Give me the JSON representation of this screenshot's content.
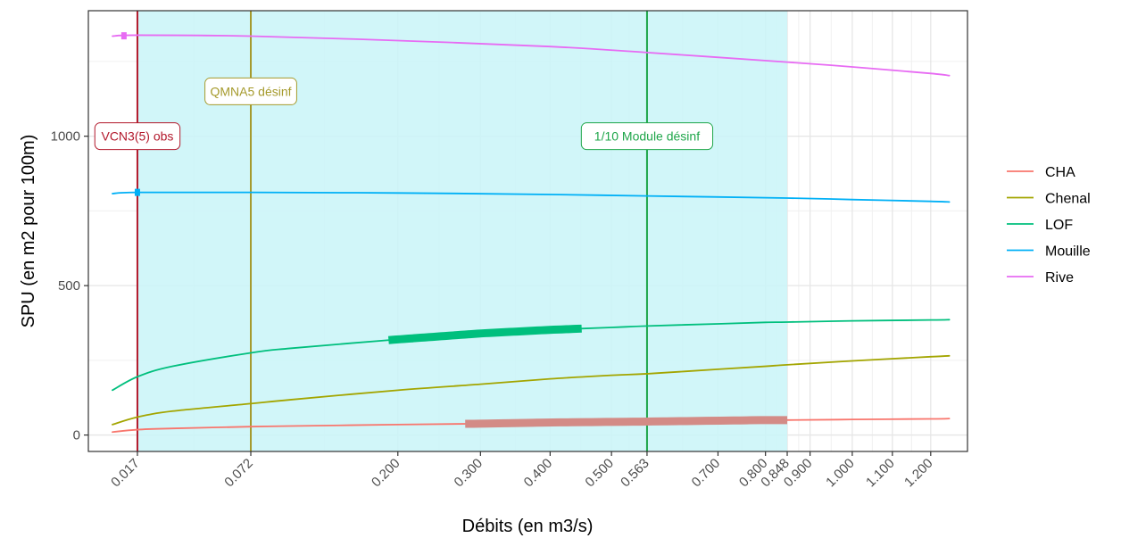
{
  "chart_data": {
    "type": "line",
    "xlabel": "Débits (en m3/s)",
    "ylabel": "SPU (en m2 pour 100m)",
    "x_scale": "sqrt",
    "xlim": [
      0.005,
      1.3
    ],
    "ylim": [
      -55,
      1420
    ],
    "x_ticks": [
      0.017,
      0.072,
      0.2,
      0.3,
      0.4,
      0.5,
      0.563,
      0.7,
      0.8,
      0.848,
      0.9,
      1.0,
      1.1,
      1.2
    ],
    "x_tick_labels": [
      "0.017",
      "0.072",
      "0.200",
      "0.300",
      "0.400",
      "0.500",
      "0.563",
      "0.700",
      "0.800",
      "0.848",
      "0.900",
      "1.000",
      "1.100",
      "1.200"
    ],
    "y_ticks": [
      0,
      500,
      1000
    ],
    "y_tick_labels": [
      "0",
      "500",
      "1000"
    ],
    "grid": true,
    "legend_position": "right",
    "shaded_interval": {
      "from": 0.017,
      "to": 0.848,
      "color": "#c9f4f8"
    },
    "reference_lines": [
      {
        "label": "VCN3(5) obs",
        "x": 0.017,
        "color": "#b2182b",
        "label_y": 1000
      },
      {
        "label": "QMNA5 désinf",
        "x": 0.072,
        "color": "#a59a2c",
        "label_y": 1150
      },
      {
        "label": "1/10 Module désinf",
        "x": 0.563,
        "color": "#1fa64a",
        "label_y": 1000
      }
    ],
    "series": [
      {
        "name": "CHA",
        "color": "#f8766d",
        "x": [
          0.01,
          0.017,
          0.03,
          0.072,
          0.1,
          0.2,
          0.3,
          0.4,
          0.5,
          0.563,
          0.7,
          0.8,
          0.848,
          1.0,
          1.2,
          1.25
        ],
        "y": [
          10,
          18,
          22,
          28,
          30,
          35,
          38,
          42,
          44,
          45,
          48,
          50,
          50,
          52,
          54,
          55
        ],
        "highlight": {
          "from": 0.28,
          "to": 0.848,
          "y_from": 37,
          "y_to": 50
        }
      },
      {
        "name": "Chenal",
        "color": "#a3a500",
        "x": [
          0.01,
          0.017,
          0.03,
          0.072,
          0.1,
          0.2,
          0.3,
          0.4,
          0.5,
          0.563,
          0.7,
          0.8,
          0.848,
          1.0,
          1.2,
          1.25
        ],
        "y": [
          35,
          60,
          80,
          105,
          118,
          150,
          170,
          188,
          200,
          205,
          220,
          230,
          235,
          248,
          262,
          265
        ]
      },
      {
        "name": "LOF",
        "color": "#00bf7d",
        "x": [
          0.01,
          0.017,
          0.03,
          0.072,
          0.1,
          0.2,
          0.3,
          0.4,
          0.5,
          0.563,
          0.7,
          0.8,
          0.848,
          1.0,
          1.2,
          1.25
        ],
        "y": [
          150,
          195,
          230,
          275,
          290,
          320,
          340,
          352,
          360,
          365,
          372,
          377,
          378,
          382,
          385,
          386
        ],
        "highlight": {
          "from": 0.19,
          "to": 0.45,
          "y_from": 320,
          "y_to": 358
        }
      },
      {
        "name": "Mouille",
        "color": "#00b0f6",
        "x": [
          0.01,
          0.017,
          0.072,
          0.2,
          0.4,
          0.563,
          0.848,
          1.0,
          1.2,
          1.25
        ],
        "y": [
          808,
          812,
          812,
          810,
          805,
          800,
          793,
          788,
          782,
          780
        ],
        "marker": {
          "x": 0.017,
          "y": 812
        }
      },
      {
        "name": "Rive",
        "color": "#e76bf3",
        "x": [
          0.01,
          0.017,
          0.072,
          0.2,
          0.4,
          0.563,
          0.848,
          1.0,
          1.2,
          1.25
        ],
        "y": [
          1335,
          1338,
          1335,
          1320,
          1300,
          1280,
          1248,
          1232,
          1210,
          1203
        ],
        "marker": {
          "x": 0.013,
          "y": 1336
        }
      }
    ]
  }
}
